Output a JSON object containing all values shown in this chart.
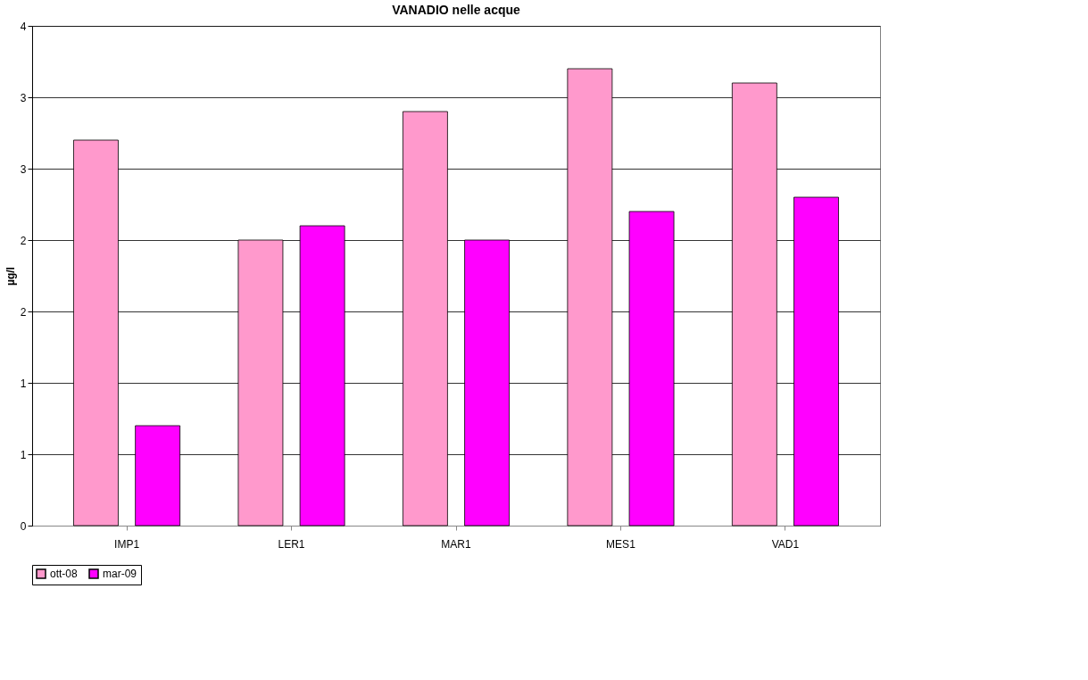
{
  "chart_data": {
    "type": "bar",
    "title": "VANADIO nelle acque",
    "ylabel": "µg/l",
    "categories": [
      "IMP1",
      "LER1",
      "MAR1",
      "MES1",
      "VAD1"
    ],
    "series": [
      {
        "name": "ott-08",
        "color": "#ff99cc",
        "values": [
          2.7,
          2.0,
          2.9,
          3.2,
          3.1
        ]
      },
      {
        "name": "mar-09",
        "color": "#ff00ff",
        "values": [
          0.7,
          2.1,
          2.0,
          2.2,
          2.3
        ]
      }
    ],
    "ylim": [
      0,
      3.5
    ],
    "yticks": [
      0,
      {
        "value": 0.5,
        "label": "1"
      },
      1,
      {
        "value": 1.5,
        "label": "2"
      },
      2,
      {
        "value": 2.5,
        "label": "3"
      },
      3,
      {
        "value": 3.5,
        "label": "4"
      }
    ],
    "grid": "y",
    "legend": "bottom"
  }
}
